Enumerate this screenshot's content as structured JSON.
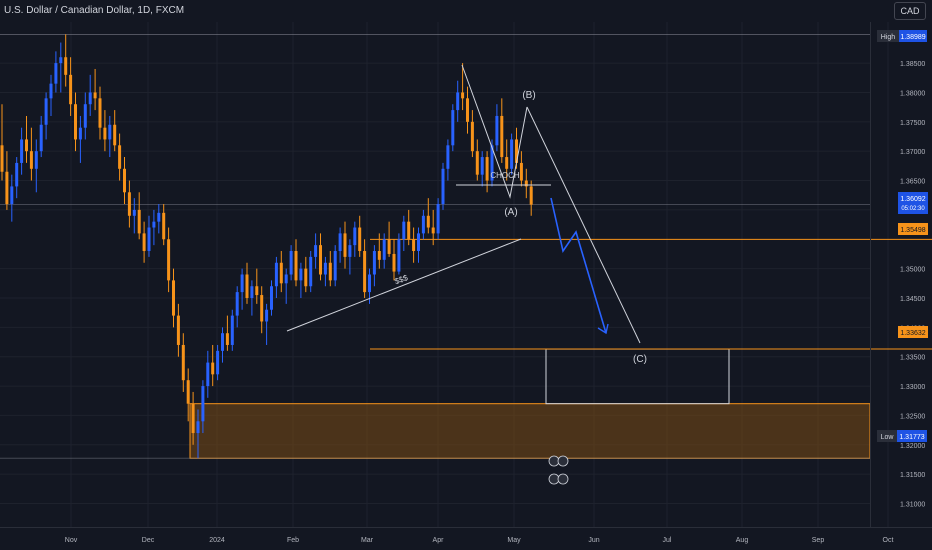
{
  "header": {
    "symbol_title": "U.S. Dollar / Canadian Dollar, 1D, FXCM",
    "currency_label": "CAD"
  },
  "colors": {
    "background": "#131722",
    "bull": "#2962ff",
    "bear": "#f7931a",
    "zone_fill": "#7a4a14",
    "zone_border": "#f7931a",
    "grid": "#1e222d",
    "projection": "#2962ff"
  },
  "chart_data": {
    "type": "candlestick",
    "x_ticks": [
      "Nov",
      "Dec",
      "2024",
      "Feb",
      "Mar",
      "Apr",
      "May",
      "Jun",
      "Jul",
      "Aug",
      "Sep",
      "Oct"
    ],
    "y_ticks": [
      "1.38500",
      "1.38000",
      "1.37500",
      "1.37000",
      "1.36500",
      "1.36000",
      "1.35000",
      "1.34500",
      "1.34000",
      "1.33500",
      "1.33000",
      "1.32500",
      "1.32000",
      "1.31500",
      "1.31000"
    ],
    "y_range": [
      1.306,
      1.392
    ],
    "price_labels": {
      "high_label": "High",
      "high_value": "1.38989",
      "current_value": "1.36092",
      "current_timer": "05:02:30",
      "level_1": "1.35498",
      "level_2": "1.33632",
      "low_label": "Low",
      "low_value": "1.31773"
    },
    "annotations": {
      "wave_a": "(A)",
      "wave_b": "(B)",
      "wave_c": "(C)",
      "choch": "CHOCH",
      "sss": "$$$"
    },
    "candles_ohlc": [
      [
        1.371,
        1.378,
        1.365,
        1.3665
      ],
      [
        1.3665,
        1.37,
        1.36,
        1.361
      ],
      [
        1.361,
        1.366,
        1.358,
        1.364
      ],
      [
        1.364,
        1.369,
        1.362,
        1.368
      ],
      [
        1.368,
        1.374,
        1.366,
        1.372
      ],
      [
        1.372,
        1.376,
        1.368,
        1.37
      ],
      [
        1.37,
        1.374,
        1.365,
        1.367
      ],
      [
        1.367,
        1.372,
        1.363,
        1.37
      ],
      [
        1.37,
        1.376,
        1.369,
        1.3745
      ],
      [
        1.3745,
        1.38,
        1.372,
        1.379
      ],
      [
        1.379,
        1.383,
        1.376,
        1.3815
      ],
      [
        1.3815,
        1.387,
        1.38,
        1.385
      ],
      [
        1.385,
        1.3885,
        1.38,
        1.386
      ],
      [
        1.386,
        1.3899,
        1.381,
        1.383
      ],
      [
        1.383,
        1.386,
        1.376,
        1.378
      ],
      [
        1.378,
        1.38,
        1.37,
        1.372
      ],
      [
        1.372,
        1.376,
        1.368,
        1.374
      ],
      [
        1.374,
        1.38,
        1.372,
        1.378
      ],
      [
        1.378,
        1.383,
        1.376,
        1.38
      ],
      [
        1.38,
        1.384,
        1.377,
        1.379
      ],
      [
        1.379,
        1.381,
        1.372,
        1.374
      ],
      [
        1.374,
        1.377,
        1.37,
        1.372
      ],
      [
        1.372,
        1.376,
        1.369,
        1.3745
      ],
      [
        1.3745,
        1.377,
        1.37,
        1.371
      ],
      [
        1.371,
        1.373,
        1.365,
        1.367
      ],
      [
        1.367,
        1.369,
        1.361,
        1.363
      ],
      [
        1.363,
        1.365,
        1.357,
        1.359
      ],
      [
        1.359,
        1.362,
        1.356,
        1.36
      ],
      [
        1.36,
        1.363,
        1.355,
        1.356
      ],
      [
        1.356,
        1.358,
        1.351,
        1.353
      ],
      [
        1.353,
        1.359,
        1.352,
        1.357
      ],
      [
        1.357,
        1.36,
        1.354,
        1.358
      ],
      [
        1.358,
        1.361,
        1.356,
        1.3595
      ],
      [
        1.3595,
        1.361,
        1.354,
        1.355
      ],
      [
        1.355,
        1.357,
        1.346,
        1.348
      ],
      [
        1.348,
        1.35,
        1.34,
        1.342
      ],
      [
        1.342,
        1.344,
        1.335,
        1.337
      ],
      [
        1.337,
        1.339,
        1.329,
        1.331
      ],
      [
        1.331,
        1.333,
        1.324,
        1.327
      ],
      [
        1.327,
        1.329,
        1.32,
        1.322
      ],
      [
        1.322,
        1.326,
        1.3177,
        1.324
      ],
      [
        1.324,
        1.331,
        1.322,
        1.33
      ],
      [
        1.33,
        1.336,
        1.328,
        1.334
      ],
      [
        1.334,
        1.337,
        1.33,
        1.332
      ],
      [
        1.332,
        1.337,
        1.331,
        1.336
      ],
      [
        1.336,
        1.34,
        1.334,
        1.339
      ],
      [
        1.339,
        1.342,
        1.336,
        1.337
      ],
      [
        1.337,
        1.343,
        1.336,
        1.342
      ],
      [
        1.342,
        1.347,
        1.34,
        1.346
      ],
      [
        1.346,
        1.35,
        1.343,
        1.349
      ],
      [
        1.349,
        1.351,
        1.344,
        1.345
      ],
      [
        1.345,
        1.348,
        1.342,
        1.347
      ],
      [
        1.347,
        1.35,
        1.344,
        1.3455
      ],
      [
        1.3455,
        1.347,
        1.339,
        1.341
      ],
      [
        1.341,
        1.344,
        1.337,
        1.343
      ],
      [
        1.343,
        1.348,
        1.342,
        1.347
      ],
      [
        1.347,
        1.352,
        1.345,
        1.351
      ],
      [
        1.351,
        1.353,
        1.346,
        1.3475
      ],
      [
        1.3475,
        1.35,
        1.344,
        1.349
      ],
      [
        1.349,
        1.354,
        1.348,
        1.353
      ],
      [
        1.353,
        1.355,
        1.347,
        1.348
      ],
      [
        1.348,
        1.351,
        1.345,
        1.35
      ],
      [
        1.35,
        1.352,
        1.346,
        1.347
      ],
      [
        1.347,
        1.353,
        1.346,
        1.352
      ],
      [
        1.352,
        1.356,
        1.35,
        1.354
      ],
      [
        1.354,
        1.356,
        1.348,
        1.349
      ],
      [
        1.349,
        1.352,
        1.347,
        1.351
      ],
      [
        1.351,
        1.353,
        1.347,
        1.348
      ],
      [
        1.348,
        1.354,
        1.347,
        1.353
      ],
      [
        1.353,
        1.357,
        1.351,
        1.356
      ],
      [
        1.356,
        1.358,
        1.35,
        1.352
      ],
      [
        1.352,
        1.355,
        1.349,
        1.354
      ],
      [
        1.354,
        1.358,
        1.352,
        1.357
      ],
      [
        1.357,
        1.359,
        1.352,
        1.353
      ],
      [
        1.353,
        1.355,
        1.345,
        1.346
      ],
      [
        1.346,
        1.35,
        1.344,
        1.349
      ],
      [
        1.349,
        1.354,
        1.347,
        1.353
      ],
      [
        1.353,
        1.356,
        1.35,
        1.3515
      ],
      [
        1.3515,
        1.356,
        1.35,
        1.355
      ],
      [
        1.355,
        1.358,
        1.352,
        1.3525
      ],
      [
        1.3525,
        1.355,
        1.348,
        1.3495
      ],
      [
        1.3495,
        1.356,
        1.349,
        1.355
      ],
      [
        1.355,
        1.359,
        1.353,
        1.358
      ],
      [
        1.358,
        1.36,
        1.354,
        1.355
      ],
      [
        1.355,
        1.357,
        1.351,
        1.353
      ],
      [
        1.353,
        1.357,
        1.351,
        1.356
      ],
      [
        1.356,
        1.36,
        1.355,
        1.359
      ],
      [
        1.359,
        1.362,
        1.356,
        1.357
      ],
      [
        1.357,
        1.36,
        1.354,
        1.356
      ],
      [
        1.356,
        1.362,
        1.355,
        1.361
      ],
      [
        1.361,
        1.368,
        1.36,
        1.367
      ],
      [
        1.367,
        1.372,
        1.365,
        1.371
      ],
      [
        1.371,
        1.378,
        1.37,
        1.377
      ],
      [
        1.377,
        1.382,
        1.375,
        1.38
      ],
      [
        1.38,
        1.385,
        1.377,
        1.379
      ],
      [
        1.379,
        1.381,
        1.373,
        1.375
      ],
      [
        1.375,
        1.377,
        1.369,
        1.37
      ],
      [
        1.37,
        1.372,
        1.365,
        1.366
      ],
      [
        1.366,
        1.37,
        1.364,
        1.369
      ],
      [
        1.369,
        1.37,
        1.363,
        1.365
      ],
      [
        1.365,
        1.372,
        1.364,
        1.371
      ],
      [
        1.371,
        1.378,
        1.37,
        1.376
      ],
      [
        1.376,
        1.379,
        1.368,
        1.369
      ],
      [
        1.369,
        1.372,
        1.365,
        1.367
      ],
      [
        1.367,
        1.373,
        1.366,
        1.372
      ],
      [
        1.372,
        1.374,
        1.367,
        1.368
      ],
      [
        1.368,
        1.37,
        1.364,
        1.365
      ],
      [
        1.365,
        1.367,
        1.362,
        1.364
      ],
      [
        1.364,
        1.365,
        1.359,
        1.3609
      ]
    ]
  }
}
